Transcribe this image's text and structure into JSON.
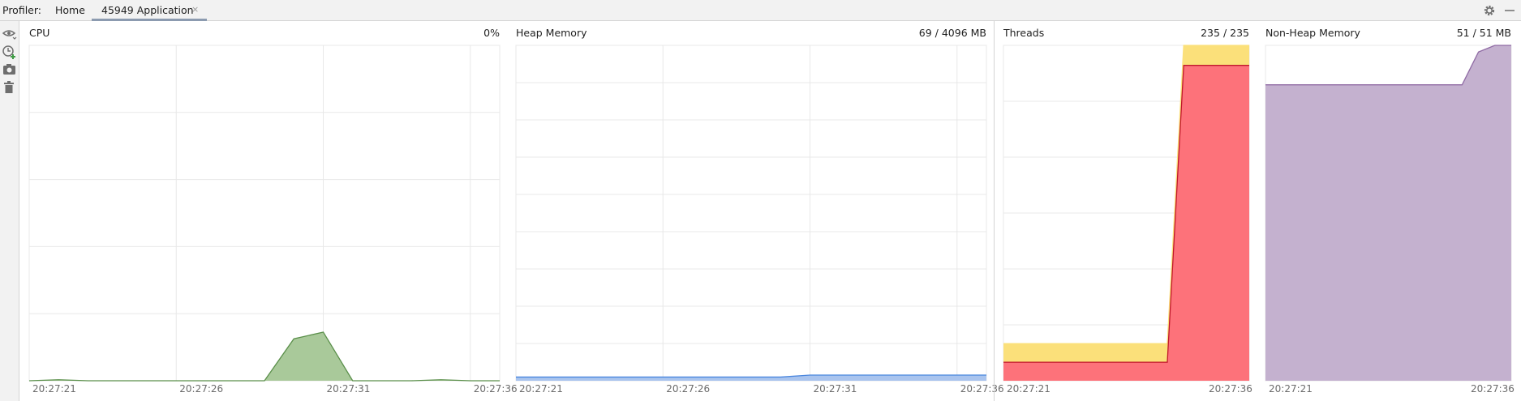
{
  "header": {
    "title": "Profiler:",
    "tabs": [
      {
        "label": "Home"
      },
      {
        "label": "45949 Application"
      }
    ],
    "close_glyph": "×"
  },
  "toolbar": {
    "icons": [
      "eye-icon",
      "add-timer-icon",
      "camera-icon",
      "trash-icon",
      "gear-icon",
      "minimize-icon"
    ]
  },
  "colors": {
    "cpu_fill": "#a9c99a",
    "cpu_line": "#5a8f4a",
    "heap_fill": "#a9c4ee",
    "heap_line": "#4a86de",
    "threads_yellow": "#fbe07a",
    "threads_red": "#fd727a",
    "threads_red_line": "#c0172a",
    "nonheap_fill": "#c4b1cf",
    "nonheap_line": "#8f6aa4",
    "grid": "#e8e8e8"
  },
  "panels": {
    "cpu": {
      "title": "CPU",
      "value": "0%",
      "x_ticks": [
        "20:27:21",
        "20:27:26",
        "20:27:31",
        "20:27:36"
      ],
      "chart_data": {
        "type": "area",
        "ylim": [
          0,
          100
        ],
        "unit": "%",
        "x": [
          "20:27:21",
          "20:27:22",
          "20:27:23",
          "20:27:24",
          "20:27:25",
          "20:27:26",
          "20:27:27",
          "20:27:28",
          "20:27:29",
          "20:27:30",
          "20:27:31",
          "20:27:32",
          "20:27:33",
          "20:27:34",
          "20:27:35",
          "20:27:36",
          "20:27:37"
        ],
        "values": [
          0,
          0.3,
          0,
          0,
          0,
          0,
          0,
          0,
          0,
          12.5,
          14.5,
          0,
          0,
          0,
          0.3,
          0,
          0
        ]
      }
    },
    "heap": {
      "title": "Heap Memory",
      "value": "69 / 4096 MB",
      "x_ticks": [
        "20:27:21",
        "20:27:26",
        "20:27:31",
        "20:27:36"
      ],
      "chart_data": {
        "type": "area",
        "ylim": [
          0,
          4096
        ],
        "unit": "MB",
        "x": [
          "20:27:21",
          "20:27:30",
          "20:27:31",
          "20:27:37"
        ],
        "values": [
          45,
          45,
          69,
          69
        ]
      }
    },
    "threads": {
      "title": "Threads",
      "value": "235 / 235",
      "x_ticks": [
        "20:27:21",
        "20:27:36"
      ],
      "chart_data": {
        "type": "area",
        "ylim": [
          0,
          235
        ],
        "x": [
          "20:27:21",
          "20:27:31",
          "20:27:32",
          "20:27:36"
        ],
        "series": [
          {
            "values": [
              26,
              26,
              235,
              235
            ]
          },
          {
            "values": [
              13,
              13,
              221,
              221
            ]
          }
        ]
      }
    },
    "nonheap": {
      "title": "Non-Heap Memory",
      "value": "51 / 51 MB",
      "x_ticks": [
        "20:27:21",
        "20:27:36"
      ],
      "chart_data": {
        "type": "area",
        "ylim": [
          0,
          51
        ],
        "unit": "MB",
        "x": [
          "20:27:21",
          "20:27:33",
          "20:27:34",
          "20:27:35",
          "20:27:36"
        ],
        "values": [
          45,
          45,
          50,
          51,
          51
        ]
      }
    }
  }
}
